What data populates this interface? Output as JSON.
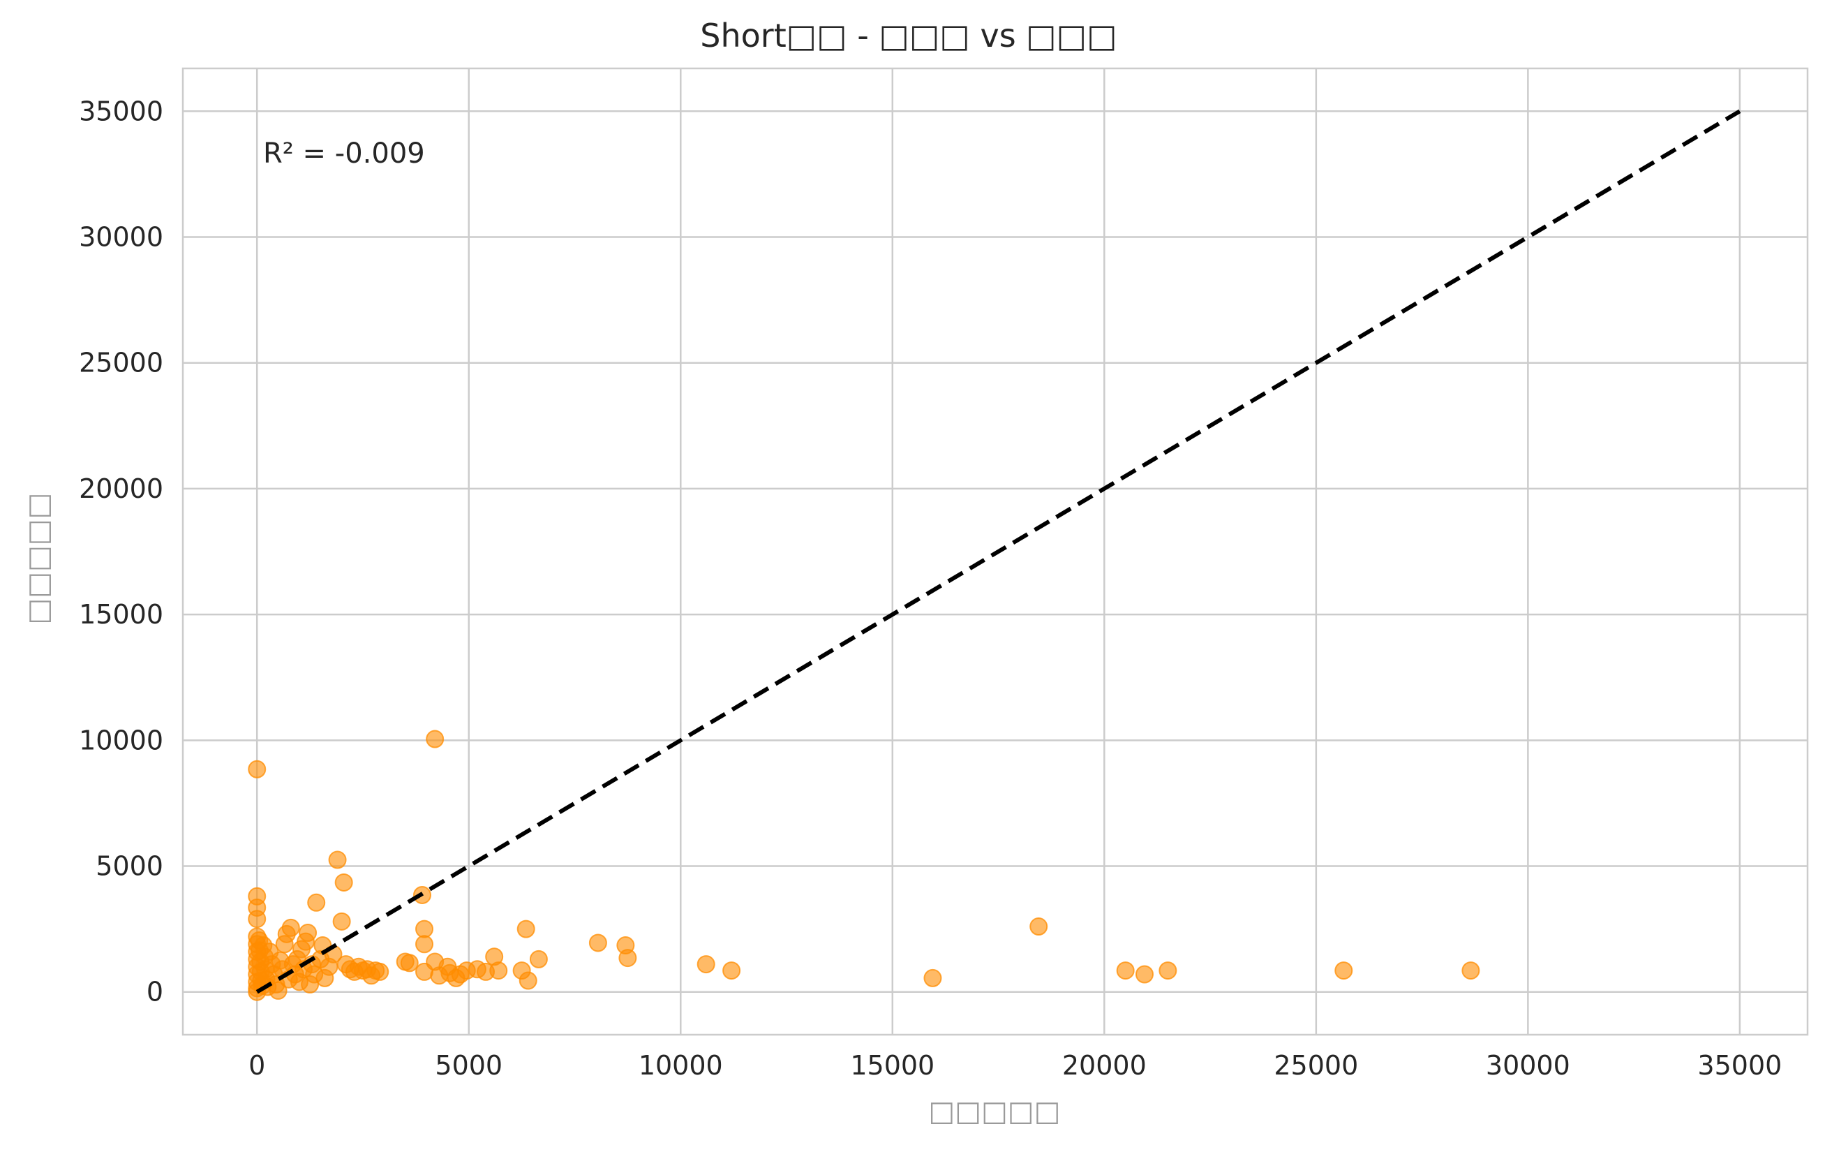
{
  "chart_data": {
    "type": "scatter",
    "title": "Short□□ - □□□ vs □□□",
    "xlabel": "□□□□□",
    "ylabel": "□□□□□",
    "xlim": [
      -1750,
      36600
    ],
    "ylim": [
      -1700,
      36700
    ],
    "xticks": [
      0,
      5000,
      10000,
      15000,
      20000,
      25000,
      30000,
      35000
    ],
    "yticks": [
      0,
      5000,
      10000,
      15000,
      20000,
      25000,
      30000,
      35000
    ],
    "grid": true,
    "annotation": "R² = -0.009",
    "point_color": "#ff8c00",
    "reference_line": {
      "style": "dashed",
      "color": "#000000",
      "from": [
        0,
        0
      ],
      "to": [
        35000,
        35000
      ]
    },
    "points": [
      [
        0,
        8850
      ],
      [
        4200,
        10050
      ],
      [
        0,
        3800
      ],
      [
        0,
        3350
      ],
      [
        0,
        2900
      ],
      [
        0,
        2200
      ],
      [
        0,
        1900
      ],
      [
        0,
        1600
      ],
      [
        0,
        1300
      ],
      [
        0,
        1000
      ],
      [
        0,
        700
      ],
      [
        0,
        400
      ],
      [
        0,
        150
      ],
      [
        0,
        0
      ],
      [
        50,
        2050
      ],
      [
        60,
        1650
      ],
      [
        80,
        1200
      ],
      [
        90,
        800
      ],
      [
        100,
        450
      ],
      [
        120,
        250
      ],
      [
        150,
        1850
      ],
      [
        180,
        1400
      ],
      [
        200,
        900
      ],
      [
        220,
        500
      ],
      [
        250,
        200
      ],
      [
        300,
        1600
      ],
      [
        350,
        1100
      ],
      [
        400,
        700
      ],
      [
        450,
        300
      ],
      [
        500,
        50
      ],
      [
        550,
        1250
      ],
      [
        600,
        900
      ],
      [
        650,
        1900
      ],
      [
        700,
        2300
      ],
      [
        750,
        500
      ],
      [
        800,
        2550
      ],
      [
        850,
        1100
      ],
      [
        900,
        700
      ],
      [
        950,
        1300
      ],
      [
        1000,
        400
      ],
      [
        1050,
        1700
      ],
      [
        1100,
        900
      ],
      [
        1150,
        2000
      ],
      [
        1200,
        2350
      ],
      [
        1250,
        300
      ],
      [
        1300,
        1100
      ],
      [
        1350,
        700
      ],
      [
        1400,
        3550
      ],
      [
        1500,
        1300
      ],
      [
        1550,
        1850
      ],
      [
        1600,
        550
      ],
      [
        1700,
        1000
      ],
      [
        1800,
        1500
      ],
      [
        1900,
        5250
      ],
      [
        2000,
        2800
      ],
      [
        2050,
        4350
      ],
      [
        2100,
        1100
      ],
      [
        2200,
        900
      ],
      [
        2300,
        800
      ],
      [
        2400,
        1000
      ],
      [
        2500,
        850
      ],
      [
        2600,
        900
      ],
      [
        2700,
        650
      ],
      [
        2800,
        850
      ],
      [
        2900,
        800
      ],
      [
        3500,
        1200
      ],
      [
        3600,
        1150
      ],
      [
        3900,
        3850
      ],
      [
        3950,
        1900
      ],
      [
        3950,
        2500
      ],
      [
        3950,
        800
      ],
      [
        4200,
        1200
      ],
      [
        4300,
        650
      ],
      [
        4500,
        1000
      ],
      [
        4550,
        750
      ],
      [
        4700,
        550
      ],
      [
        4800,
        700
      ],
      [
        4950,
        850
      ],
      [
        5200,
        900
      ],
      [
        5400,
        800
      ],
      [
        5600,
        1400
      ],
      [
        5700,
        850
      ],
      [
        6250,
        850
      ],
      [
        6350,
        2500
      ],
      [
        6400,
        450
      ],
      [
        6650,
        1300
      ],
      [
        8050,
        1950
      ],
      [
        8700,
        1850
      ],
      [
        8750,
        1350
      ],
      [
        10600,
        1100
      ],
      [
        11200,
        850
      ],
      [
        15950,
        550
      ],
      [
        18450,
        2600
      ],
      [
        20500,
        850
      ],
      [
        20950,
        700
      ],
      [
        21500,
        850
      ],
      [
        25650,
        850
      ],
      [
        28650,
        850
      ]
    ]
  }
}
